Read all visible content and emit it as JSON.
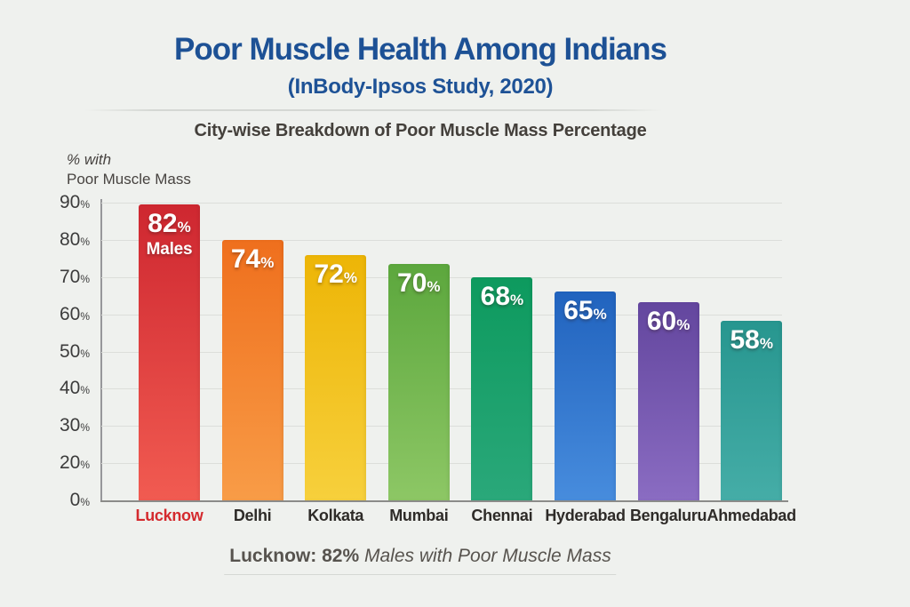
{
  "page": {
    "background": "#eff1ee"
  },
  "header": {
    "title": "Poor Muscle Health Among Indians",
    "subtitle": "(InBody-Ipsos Study, 2020)",
    "title_color": "#1d5195"
  },
  "chart_data": {
    "type": "bar",
    "title": "City-wise Breakdown of Poor Muscle Mass Percentage",
    "ylabel": "% with Poor Muscle Mass",
    "ylabel_lines": [
      "% with",
      "Poor Muscle Mass"
    ],
    "categories": [
      "Lucknow",
      "Delhi",
      "Kolkata",
      "Mumbai",
      "Chennai",
      "Hyderabad",
      "Bengaluru",
      "Ahmedabad"
    ],
    "values": [
      82,
      74,
      72,
      70,
      68,
      65,
      60,
      58
    ],
    "value_suffix": "%",
    "bar_sublabels": [
      "Males",
      "",
      "",
      "",
      "",
      "",
      "",
      ""
    ],
    "bar_colors": [
      {
        "top": "#ce2730",
        "bottom": "#f15b51"
      },
      {
        "top": "#ef6f1d",
        "bottom": "#f89c47"
      },
      {
        "top": "#edb506",
        "bottom": "#f7d03c"
      },
      {
        "top": "#5ca73d",
        "bottom": "#8dc765"
      },
      {
        "top": "#0d9a5e",
        "bottom": "#2aa87a"
      },
      {
        "top": "#2163be",
        "bottom": "#478cdd"
      },
      {
        "top": "#63469e",
        "bottom": "#8a6cc2"
      },
      {
        "top": "#27968f",
        "bottom": "#45ada7"
      }
    ],
    "bar_height_fracs": [
      0.995,
      0.875,
      0.824,
      0.794,
      0.749,
      0.701,
      0.666,
      0.603
    ],
    "y_ticks": [
      "90",
      "80",
      "70",
      "60",
      "50",
      "40",
      "30",
      "20",
      "0"
    ],
    "tick_suffix": "%",
    "ylim": [
      0,
      90
    ],
    "grid": true,
    "legend": false,
    "category_label_colors": [
      "#d42a2e",
      "#2e2b28",
      "#2e2b28",
      "#2e2b28",
      "#2e2b28",
      "#2e2b28",
      "#2e2b28",
      "#2e2b28"
    ],
    "highlight": {
      "category": "Lucknow",
      "color": "#d42a2e"
    }
  },
  "footer_caption": {
    "lead": "Lucknow: 82%",
    "italic": " Males with Poor Muscle Mass"
  }
}
